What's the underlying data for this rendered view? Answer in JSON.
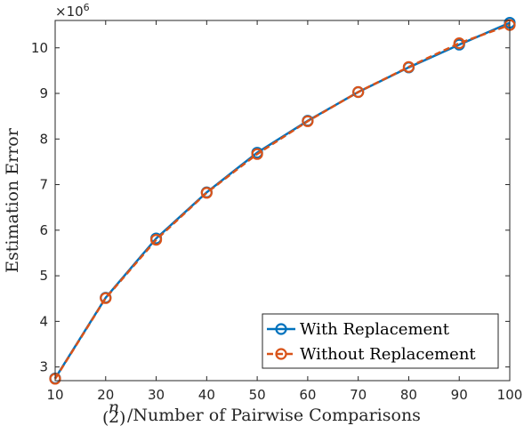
{
  "chart_data": {
    "type": "line",
    "title": "",
    "xlabel": "/Number of Pairwise Comparisons",
    "xlabel_binom": {
      "top": "n",
      "bottom": "2"
    },
    "ylabel": "Estimation Error",
    "y_exponent": {
      "base": "×10",
      "power": "6"
    },
    "xlim": [
      10,
      100
    ],
    "ylim": [
      2.7,
      10.6
    ],
    "x": [
      10,
      20,
      30,
      40,
      50,
      60,
      70,
      80,
      90,
      100
    ],
    "xticks": [
      "10",
      "20",
      "30",
      "40",
      "50",
      "60",
      "70",
      "80",
      "90",
      "100"
    ],
    "yticks": [
      3,
      4,
      5,
      6,
      7,
      8,
      9,
      10
    ],
    "ytick_labels": [
      "3",
      "4",
      "5",
      "6",
      "7",
      "8",
      "9",
      "10"
    ],
    "grid": false,
    "legend_position": "bottom-right",
    "series": [
      {
        "name": "With Replacement",
        "color": "#0072BD",
        "style": "solid",
        "marker": "circle",
        "values": [
          2.75,
          4.52,
          5.82,
          6.83,
          7.7,
          8.4,
          9.03,
          9.57,
          10.07,
          10.55
        ]
      },
      {
        "name": "Without Replacement",
        "color": "#D95319",
        "style": "dashed",
        "marker": "circle",
        "values": [
          2.74,
          4.51,
          5.79,
          6.82,
          7.67,
          8.39,
          9.03,
          9.58,
          10.1,
          10.5
        ]
      }
    ]
  }
}
